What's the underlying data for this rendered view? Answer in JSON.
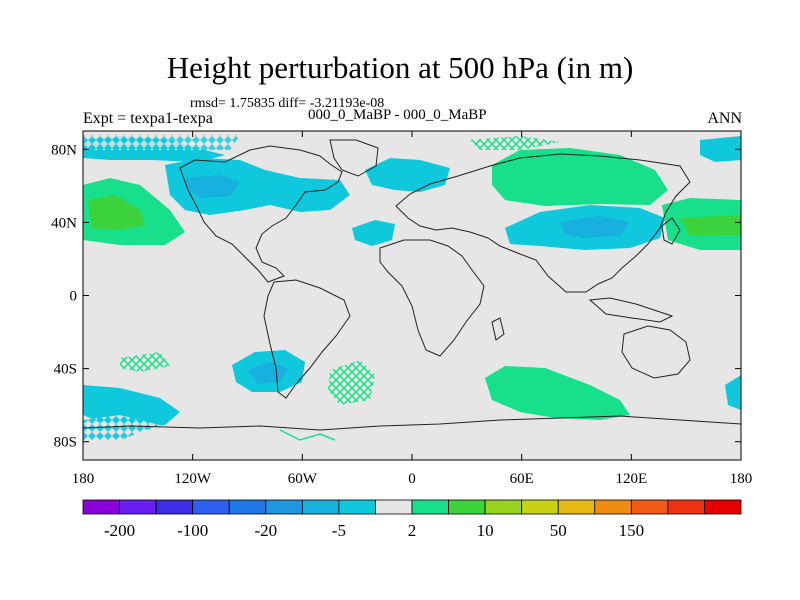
{
  "title": "Height perturbation at 500 hPa (in m)",
  "stats": "rmsd= 1.75835 diff= -3.21193e-08",
  "expt": "Expt = texpa1-texpa",
  "case": "000_0_MaBP - 000_0_MaBP",
  "season": "ANN",
  "lat_ticks": [
    "80N",
    "40N",
    "0",
    "40S",
    "80S"
  ],
  "lon_ticks": [
    "180",
    "120W",
    "60W",
    "0",
    "60E",
    "120E",
    "180"
  ],
  "colorbar": {
    "labels": [
      "-200",
      "-100",
      "-20",
      "-5",
      "2",
      "10",
      "50",
      "150"
    ],
    "colors": [
      "#8a00d9",
      "#6a1ef0",
      "#3e2de6",
      "#2f5ff0",
      "#1e78e8",
      "#1e96e0",
      "#18b0de",
      "#10c8dc",
      "#e6e6e6",
      "#18e08a",
      "#3cd23c",
      "#96d21e",
      "#c8d214",
      "#e6b814",
      "#f08c14",
      "#f05a14",
      "#f03214",
      "#e60000"
    ]
  },
  "colors": {
    "background_fill": "#e6e6e6",
    "negative_shade": "#10c8dc",
    "negative_dark": "#18b0de",
    "positive_shade": "#18e08a",
    "positive_dark": "#3cd23c"
  }
}
